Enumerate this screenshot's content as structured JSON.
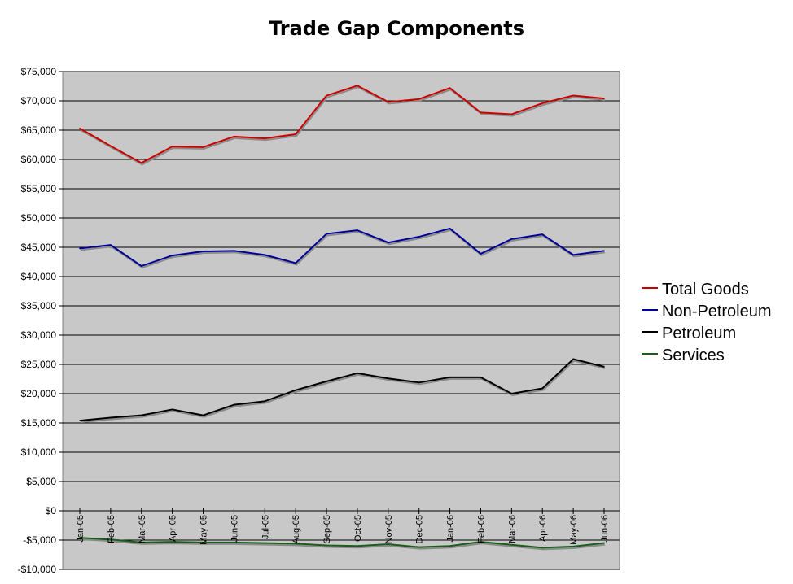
{
  "chart_data": {
    "type": "line",
    "title": "Trade Gap Components",
    "xlabel": "",
    "ylabel": "",
    "categories": [
      "Jan-05",
      "Feb-05",
      "Mar-05",
      "Apr-05",
      "May-05",
      "Jun-05",
      "Jul-05",
      "Aug-05",
      "Sep-05",
      "Oct-05",
      "Nov-05",
      "Dec-05",
      "Jan-06",
      "Feb-06",
      "Mar-06",
      "Apr-06",
      "May-06",
      "Jun-06"
    ],
    "ylim": [
      -10000,
      75000
    ],
    "yticks": [
      75000,
      70000,
      65000,
      60000,
      55000,
      50000,
      45000,
      40000,
      35000,
      30000,
      25000,
      20000,
      15000,
      10000,
      5000,
      0,
      -5000,
      -10000
    ],
    "ytick_labels": [
      "$75,000",
      "$70,000",
      "$65,000",
      "$60,000",
      "$55,000",
      "$50,000",
      "$45,000",
      "$40,000",
      "$35,000",
      "$30,000",
      "$25,000",
      "$20,000",
      "$15,000",
      "$10,000",
      "$5,000",
      "$0",
      "-$5,000",
      "-$10,000"
    ],
    "grid": "horizontal",
    "legend_position": "right",
    "series": [
      {
        "name": "Total Goods",
        "color": "#cc0000",
        "values": [
          65300,
          62300,
          59400,
          62200,
          62100,
          63900,
          63600,
          64300,
          70900,
          72600,
          69800,
          70300,
          72200,
          68000,
          67700,
          69600,
          70900,
          70400
        ]
      },
      {
        "name": "Non-Petroleum",
        "color": "#000099",
        "values": [
          44800,
          45400,
          41800,
          43600,
          44300,
          44400,
          43700,
          42300,
          47300,
          47900,
          45800,
          46800,
          48200,
          43900,
          46400,
          47200,
          43700,
          44400
        ]
      },
      {
        "name": "Petroleum",
        "color": "#000000",
        "values": [
          15400,
          15900,
          16300,
          17300,
          16300,
          18100,
          18700,
          20600,
          22100,
          23500,
          22600,
          21900,
          22800,
          22800,
          20000,
          20900,
          25900,
          24600
        ]
      },
      {
        "name": "Services",
        "color": "#1a5c1a",
        "values": [
          -4600,
          -4900,
          -5400,
          -5300,
          -5400,
          -5400,
          -5500,
          -5600,
          -5900,
          -6000,
          -5700,
          -6200,
          -6000,
          -5300,
          -5800,
          -6300,
          -6100,
          -5500
        ]
      }
    ]
  }
}
